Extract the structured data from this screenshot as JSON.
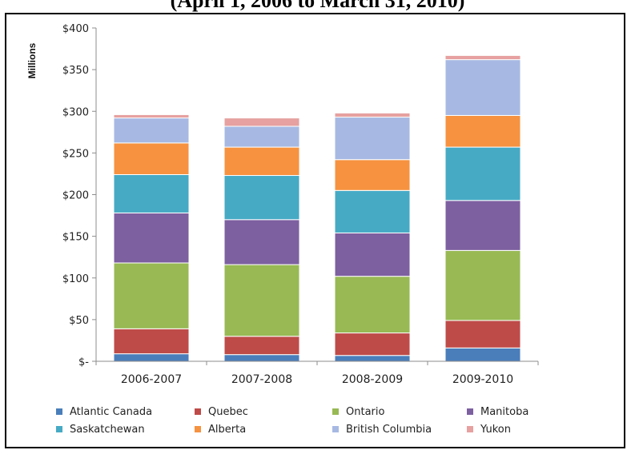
{
  "header": {
    "cutoff_text": "(April 1, 2006 to March 31, 2010)"
  },
  "chart_data": {
    "type": "bar",
    "stacked": true,
    "title": "",
    "ylabel": "Millions",
    "xlabel": "",
    "ylim": [
      0,
      400
    ],
    "y_ticks": [
      0,
      50,
      100,
      150,
      200,
      250,
      300,
      350,
      400
    ],
    "y_tick_labels": [
      "$-",
      "$50",
      "$100",
      "$150",
      "$200",
      "$250",
      "$300",
      "$350",
      "$400"
    ],
    "grid": false,
    "legend_position": "bottom",
    "categories": [
      "2006-2007",
      "2007-2008",
      "2008-2009",
      "2009-2010"
    ],
    "series": [
      {
        "name": "Atlantic Canada",
        "color": "#4a7ebb",
        "values": [
          9,
          8,
          7,
          16
        ]
      },
      {
        "name": "Quebec",
        "color": "#be4b48",
        "values": [
          30,
          22,
          27,
          33
        ]
      },
      {
        "name": "Ontario",
        "color": "#98b954",
        "values": [
          79,
          86,
          68,
          84
        ]
      },
      {
        "name": "Manitoba",
        "color": "#7d60a0",
        "values": [
          60,
          54,
          52,
          60
        ]
      },
      {
        "name": "Saskatchewan",
        "color": "#46aac5",
        "values": [
          46,
          53,
          51,
          64
        ]
      },
      {
        "name": "Alberta",
        "color": "#f69240",
        "values": [
          38,
          34,
          37,
          38
        ]
      },
      {
        "name": "British Columbia",
        "color": "#a7b9e3",
        "values": [
          30,
          25,
          51,
          67
        ]
      },
      {
        "name": "Yukon",
        "color": "#e6a1a0",
        "values": [
          4,
          10,
          5,
          5
        ]
      }
    ]
  }
}
